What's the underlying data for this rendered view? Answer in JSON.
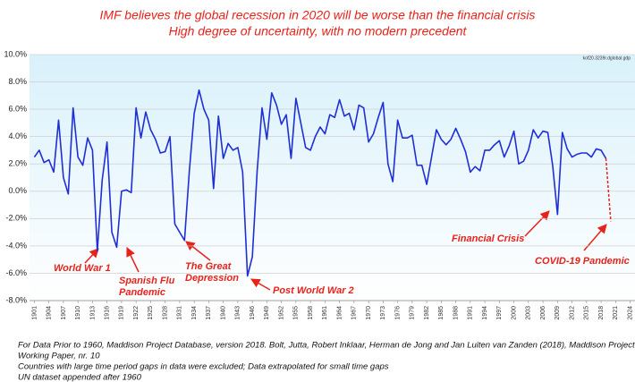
{
  "chart_data": {
    "type": "line",
    "title": [
      "IMF believes the global recession in 2020 will be worse than the financial crisis",
      "High degree of uncertainty, with no modern precedent"
    ],
    "note": "kof20.3239r.dglobal.gdp",
    "x": [
      1901,
      1902,
      1903,
      1904,
      1905,
      1906,
      1907,
      1908,
      1909,
      1910,
      1911,
      1912,
      1913,
      1914,
      1915,
      1916,
      1917,
      1918,
      1919,
      1920,
      1921,
      1922,
      1923,
      1924,
      1925,
      1926,
      1927,
      1928,
      1929,
      1930,
      1931,
      1932,
      1933,
      1934,
      1935,
      1936,
      1937,
      1938,
      1939,
      1940,
      1941,
      1942,
      1943,
      1944,
      1945,
      1946,
      1947,
      1948,
      1949,
      1950,
      1951,
      1952,
      1953,
      1954,
      1955,
      1956,
      1957,
      1958,
      1959,
      1960,
      1961,
      1962,
      1963,
      1964,
      1965,
      1966,
      1967,
      1968,
      1969,
      1970,
      1971,
      1972,
      1973,
      1974,
      1975,
      1976,
      1977,
      1978,
      1979,
      1980,
      1981,
      1982,
      1983,
      1984,
      1985,
      1986,
      1987,
      1988,
      1989,
      1990,
      1991,
      1992,
      1993,
      1994,
      1995,
      1996,
      1997,
      1998,
      1999,
      2000,
      2001,
      2002,
      2003,
      2004,
      2005,
      2006,
      2007,
      2008,
      2009,
      2010,
      2011,
      2012,
      2013,
      2014,
      2015,
      2016,
      2017,
      2018,
      2019,
      2020
    ],
    "series": [
      {
        "color": "#1f2fd6",
        "dashed": false,
        "values": [
          2.5,
          3.0,
          2.1,
          2.3,
          1.4,
          5.2,
          1.0,
          -0.2,
          6.1,
          2.5,
          1.9,
          3.9,
          3.0,
          -4.4,
          0.8,
          3.6,
          -3.0,
          -4.1,
          0.0,
          0.1,
          -0.1,
          6.1,
          3.9,
          5.8,
          4.5,
          3.8,
          2.8,
          2.9,
          4.0,
          -2.4,
          -3.0,
          -3.6,
          1.5,
          5.7,
          7.4,
          6.0,
          5.2,
          0.2,
          5.5,
          2.4,
          3.5,
          3.0,
          3.2,
          1.4,
          -6.2,
          -4.8,
          1.5,
          6.1,
          3.8,
          7.2,
          6.3,
          4.9,
          5.6,
          2.4,
          6.8,
          5.0,
          3.2,
          3.0,
          4.0,
          4.7,
          4.2,
          5.6,
          5.4,
          6.7,
          5.5,
          5.7,
          4.5,
          6.3,
          6.1,
          3.6,
          4.2,
          5.4,
          6.5,
          2.0,
          0.7,
          5.2,
          3.9,
          3.9,
          4.1,
          1.9,
          1.9,
          0.5,
          2.5,
          4.5,
          3.8,
          3.4,
          3.8,
          4.6,
          3.8,
          2.9,
          1.4,
          1.8,
          1.5,
          3.0,
          3.0,
          3.4,
          3.7,
          2.5,
          3.3,
          4.4,
          2.0,
          2.2,
          3.0,
          4.5,
          3.9,
          4.4,
          4.3,
          1.9,
          -1.7,
          4.3,
          3.1,
          2.5,
          2.7,
          2.8,
          2.8,
          2.5,
          3.1,
          3.0,
          2.4,
          null
        ]
      },
      {
        "color": "#e8221b",
        "dashed": true,
        "values": [
          null,
          null,
          null,
          null,
          null,
          null,
          null,
          null,
          null,
          null,
          null,
          null,
          null,
          null,
          null,
          null,
          null,
          null,
          null,
          null,
          null,
          null,
          null,
          null,
          null,
          null,
          null,
          null,
          null,
          null,
          null,
          null,
          null,
          null,
          null,
          null,
          null,
          null,
          null,
          null,
          null,
          null,
          null,
          null,
          null,
          null,
          null,
          null,
          null,
          null,
          null,
          null,
          null,
          null,
          null,
          null,
          null,
          null,
          null,
          null,
          null,
          null,
          null,
          null,
          null,
          null,
          null,
          null,
          null,
          null,
          null,
          null,
          null,
          null,
          null,
          null,
          null,
          null,
          null,
          null,
          null,
          null,
          null,
          null,
          null,
          null,
          null,
          null,
          null,
          null,
          null,
          null,
          null,
          null,
          null,
          null,
          null,
          null,
          null,
          null,
          null,
          null,
          null,
          null,
          null,
          null,
          null,
          null,
          null,
          null,
          null,
          null,
          null,
          null,
          null,
          null,
          null,
          null,
          2.4,
          -2.2
        ]
      }
    ],
    "xlim": [
      1900,
      2025
    ],
    "xticks": [
      1901,
      1904,
      1907,
      1910,
      1913,
      1916,
      1919,
      1922,
      1925,
      1928,
      1931,
      1934,
      1937,
      1940,
      1943,
      1946,
      1949,
      1952,
      1955,
      1958,
      1961,
      1964,
      1967,
      1970,
      1973,
      1976,
      1979,
      1982,
      1985,
      1988,
      1991,
      1994,
      1997,
      2000,
      2003,
      2006,
      2009,
      2012,
      2015,
      2018,
      2021,
      2024
    ],
    "ylim": [
      -8,
      10
    ],
    "yticks": [
      {
        "value": -8,
        "label": "-8.0%"
      },
      {
        "value": -6,
        "label": "-6.0%"
      },
      {
        "value": -4,
        "label": "-4.0%"
      },
      {
        "value": -2,
        "label": "-2.0%"
      },
      {
        "value": 0,
        "label": "0.0%"
      },
      {
        "value": 2,
        "label": "2.0%"
      },
      {
        "value": 4,
        "label": "4.0%"
      },
      {
        "value": 6,
        "label": "6.0%"
      },
      {
        "value": 8,
        "label": "8.0%"
      },
      {
        "value": 10,
        "label": "10.0%"
      }
    ],
    "grid": true,
    "annotations": [
      {
        "lines": [
          "World War 1"
        ]
      },
      {
        "lines": [
          "Spanish Flu",
          "Pandemic"
        ]
      },
      {
        "lines": [
          "The Great",
          "Depression"
        ]
      },
      {
        "lines": [
          "Post World War 2"
        ]
      },
      {
        "lines": [
          "Financial Crisis"
        ]
      },
      {
        "lines": [
          "COVID-19 Pandemic"
        ]
      }
    ],
    "footnotes": [
      "For Data Prior to 1960, Maddison Project Database, version 2018. Bolt, Jutta, Robert Inklaar, Herman de Jong and Jan Luiten van Zanden (2018),  Maddison Project",
      "Working Paper, nr. 10",
      "Countries with large time period gaps in data were excluded; Data extrapolated for small time gaps",
      "UN dataset appended after 1960"
    ]
  }
}
